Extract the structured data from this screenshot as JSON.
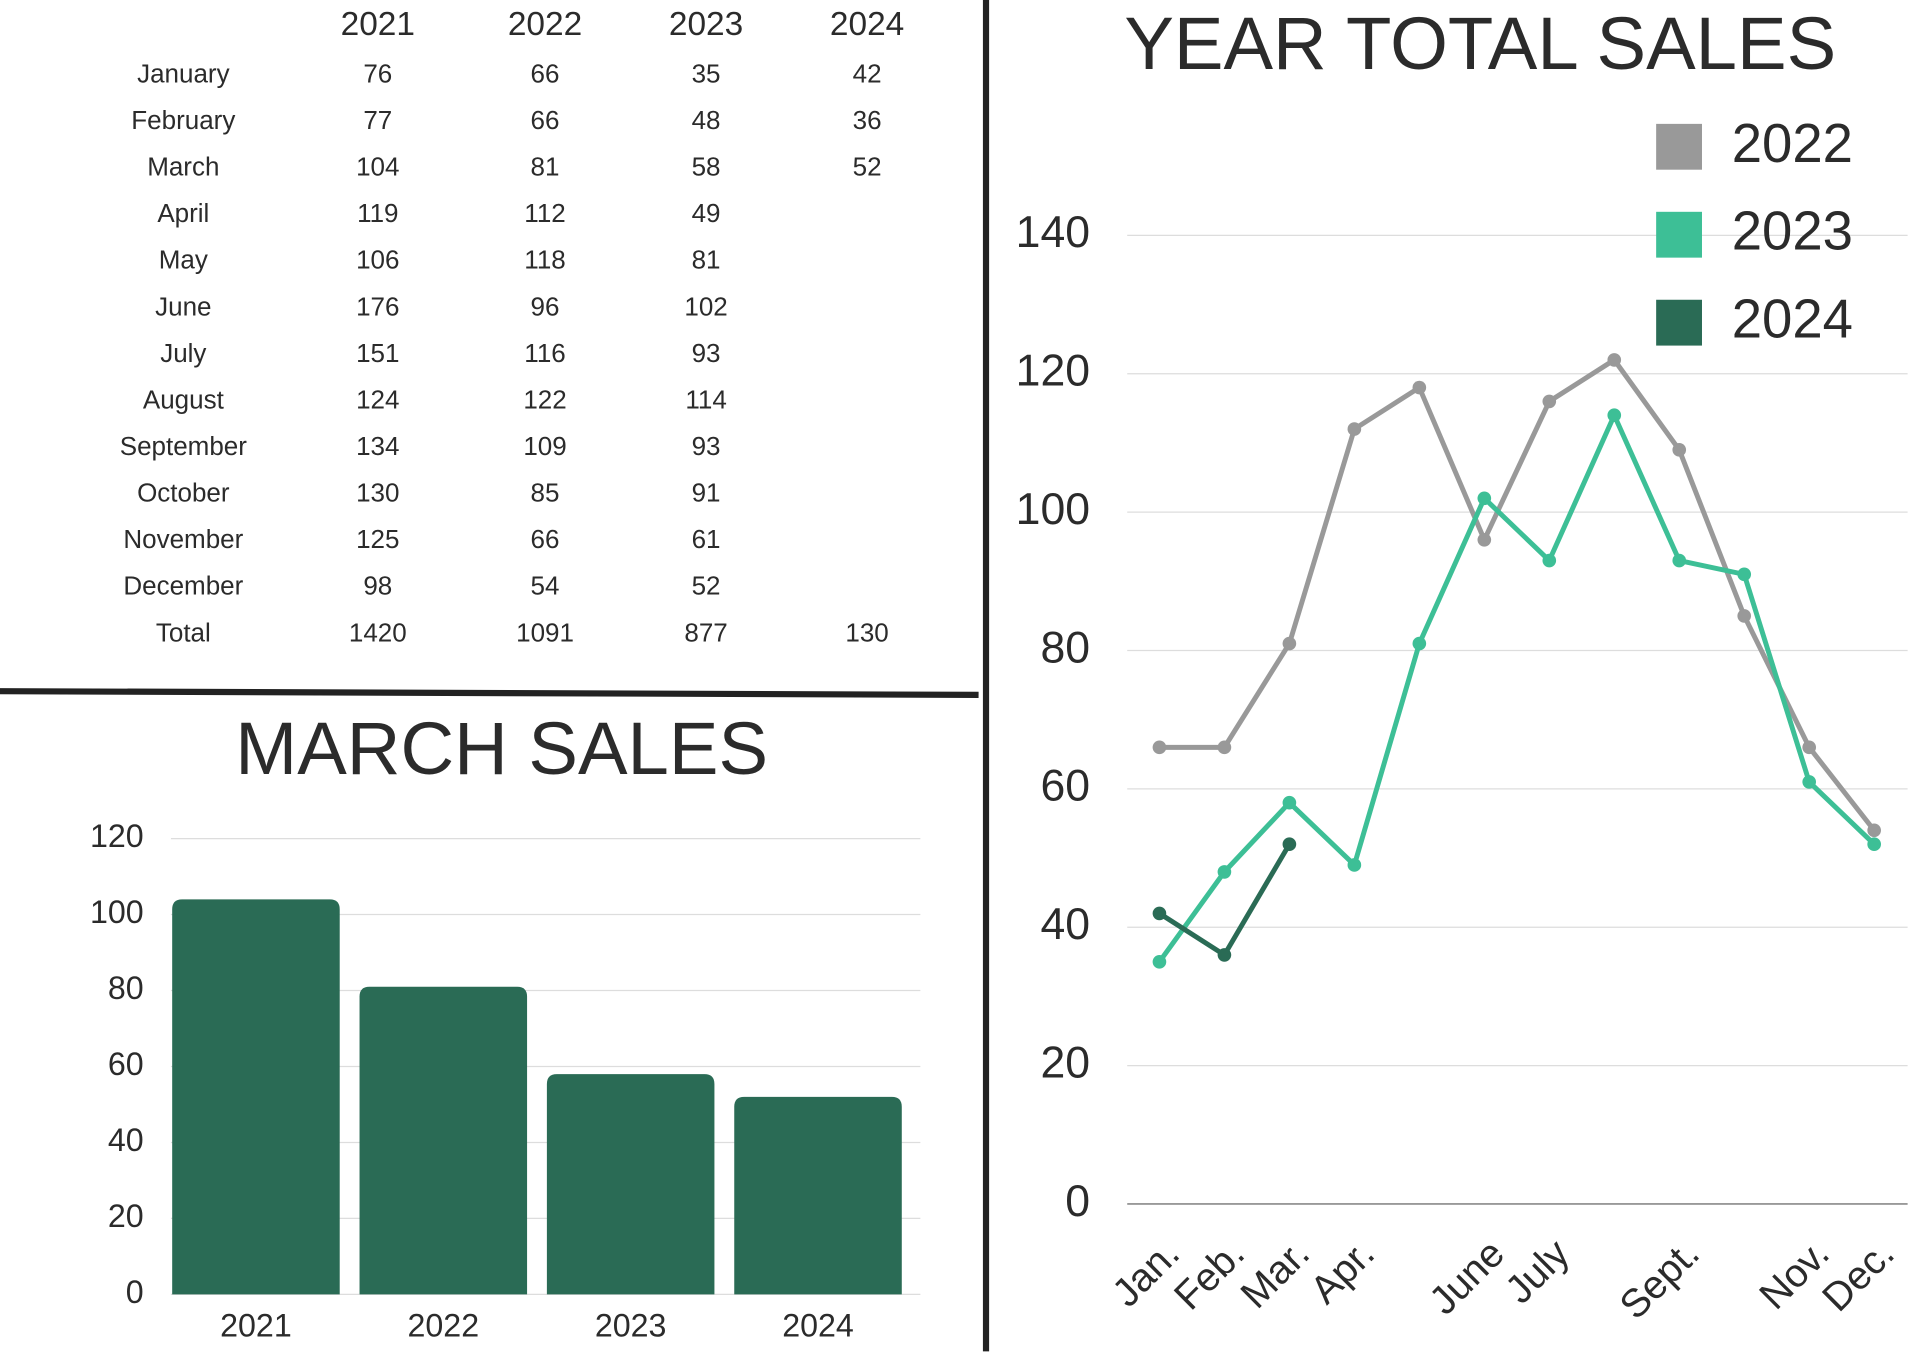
{
  "table": {
    "columns": [
      "2021",
      "2022",
      "2023",
      "2024"
    ],
    "rows": [
      {
        "label": "January",
        "values": [
          76,
          66,
          35,
          42
        ]
      },
      {
        "label": "February",
        "values": [
          77,
          66,
          48,
          36
        ]
      },
      {
        "label": "March",
        "values": [
          104,
          81,
          58,
          52
        ]
      },
      {
        "label": "April",
        "values": [
          119,
          112,
          49
        ]
      },
      {
        "label": "May",
        "values": [
          106,
          118,
          81
        ]
      },
      {
        "label": "June",
        "values": [
          176,
          96,
          102
        ]
      },
      {
        "label": "July",
        "values": [
          151,
          116,
          93
        ]
      },
      {
        "label": "August",
        "values": [
          124,
          122,
          114
        ]
      },
      {
        "label": "September",
        "values": [
          134,
          109,
          93
        ]
      },
      {
        "label": "October",
        "values": [
          130,
          85,
          91
        ]
      },
      {
        "label": "November",
        "values": [
          125,
          66,
          61
        ]
      },
      {
        "label": "December",
        "values": [
          98,
          54,
          52
        ]
      },
      {
        "label": "Total",
        "values": [
          1420,
          1091,
          877,
          130
        ]
      }
    ]
  },
  "chart_data": [
    {
      "type": "bar",
      "title": "MARCH SALES",
      "categories": [
        "2021",
        "2022",
        "2023",
        "2024"
      ],
      "values": [
        104,
        81,
        58,
        52
      ],
      "color": "#2a6b55",
      "ylim": [
        0,
        120
      ],
      "yticks": [
        0,
        20,
        40,
        60,
        80,
        100,
        120
      ],
      "grid": true
    },
    {
      "type": "line",
      "title": "YEAR TOTAL SALES",
      "categories": [
        "Jan.",
        "Feb.",
        "Mar.",
        "Apr.",
        null,
        "June",
        "July",
        null,
        "Sept.",
        null,
        "Nov.",
        "Dec."
      ],
      "series": [
        {
          "name": "2022",
          "color": "#999999",
          "values": [
            66,
            66,
            81,
            112,
            118,
            96,
            116,
            122,
            109,
            85,
            66,
            54
          ]
        },
        {
          "name": "2023",
          "color": "#3dbf96",
          "values": [
            35,
            48,
            58,
            49,
            81,
            102,
            93,
            114,
            93,
            91,
            61,
            52
          ]
        },
        {
          "name": "2024",
          "color": "#2a6b55",
          "values": [
            42,
            36,
            52,
            null,
            null,
            null,
            null,
            null,
            null,
            null,
            null,
            null
          ]
        }
      ],
      "ylim": [
        0,
        140
      ],
      "yticks": [
        0,
        20,
        40,
        60,
        80,
        100,
        120,
        140
      ],
      "grid": true,
      "legend": "top-right"
    }
  ]
}
